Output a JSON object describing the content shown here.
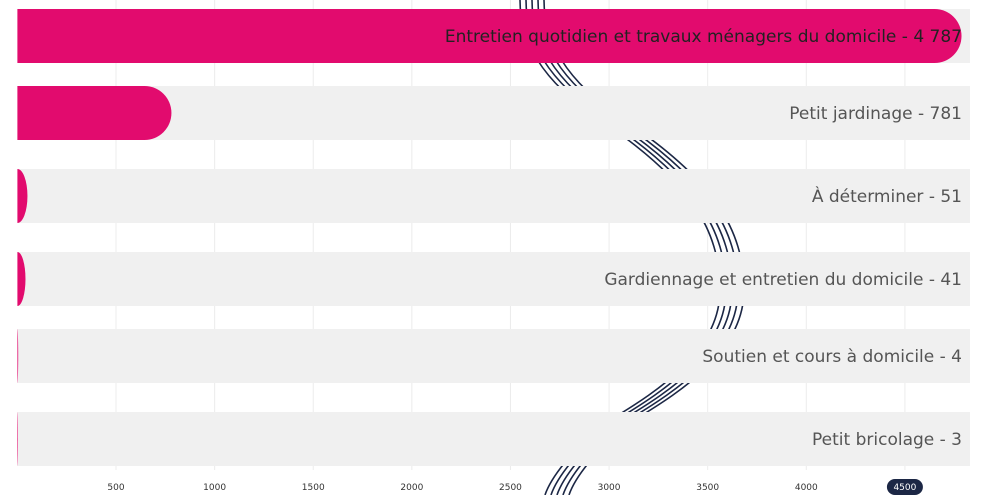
{
  "chart_data": {
    "type": "hbar",
    "categories": [
      "Entretien quotidien et travaux ménagers du domicile - 4 787",
      "Petit jardinage - 781",
      "À déterminer - 51",
      "Gardiennage et entretien du domicile - 41",
      "Soutien et cours à domicile - 4",
      "Petit bricolage - 3"
    ],
    "values": [
      4787,
      781,
      51,
      41,
      4,
      3
    ],
    "color": "#e20b6e",
    "track_color": "#f0f0f0",
    "xlim": [
      0,
      4830
    ],
    "xticks": [
      500,
      1000,
      1500,
      2000,
      2500,
      3000,
      3500,
      4000,
      4500
    ],
    "highlight_xtick": 4500,
    "grid": true
  }
}
